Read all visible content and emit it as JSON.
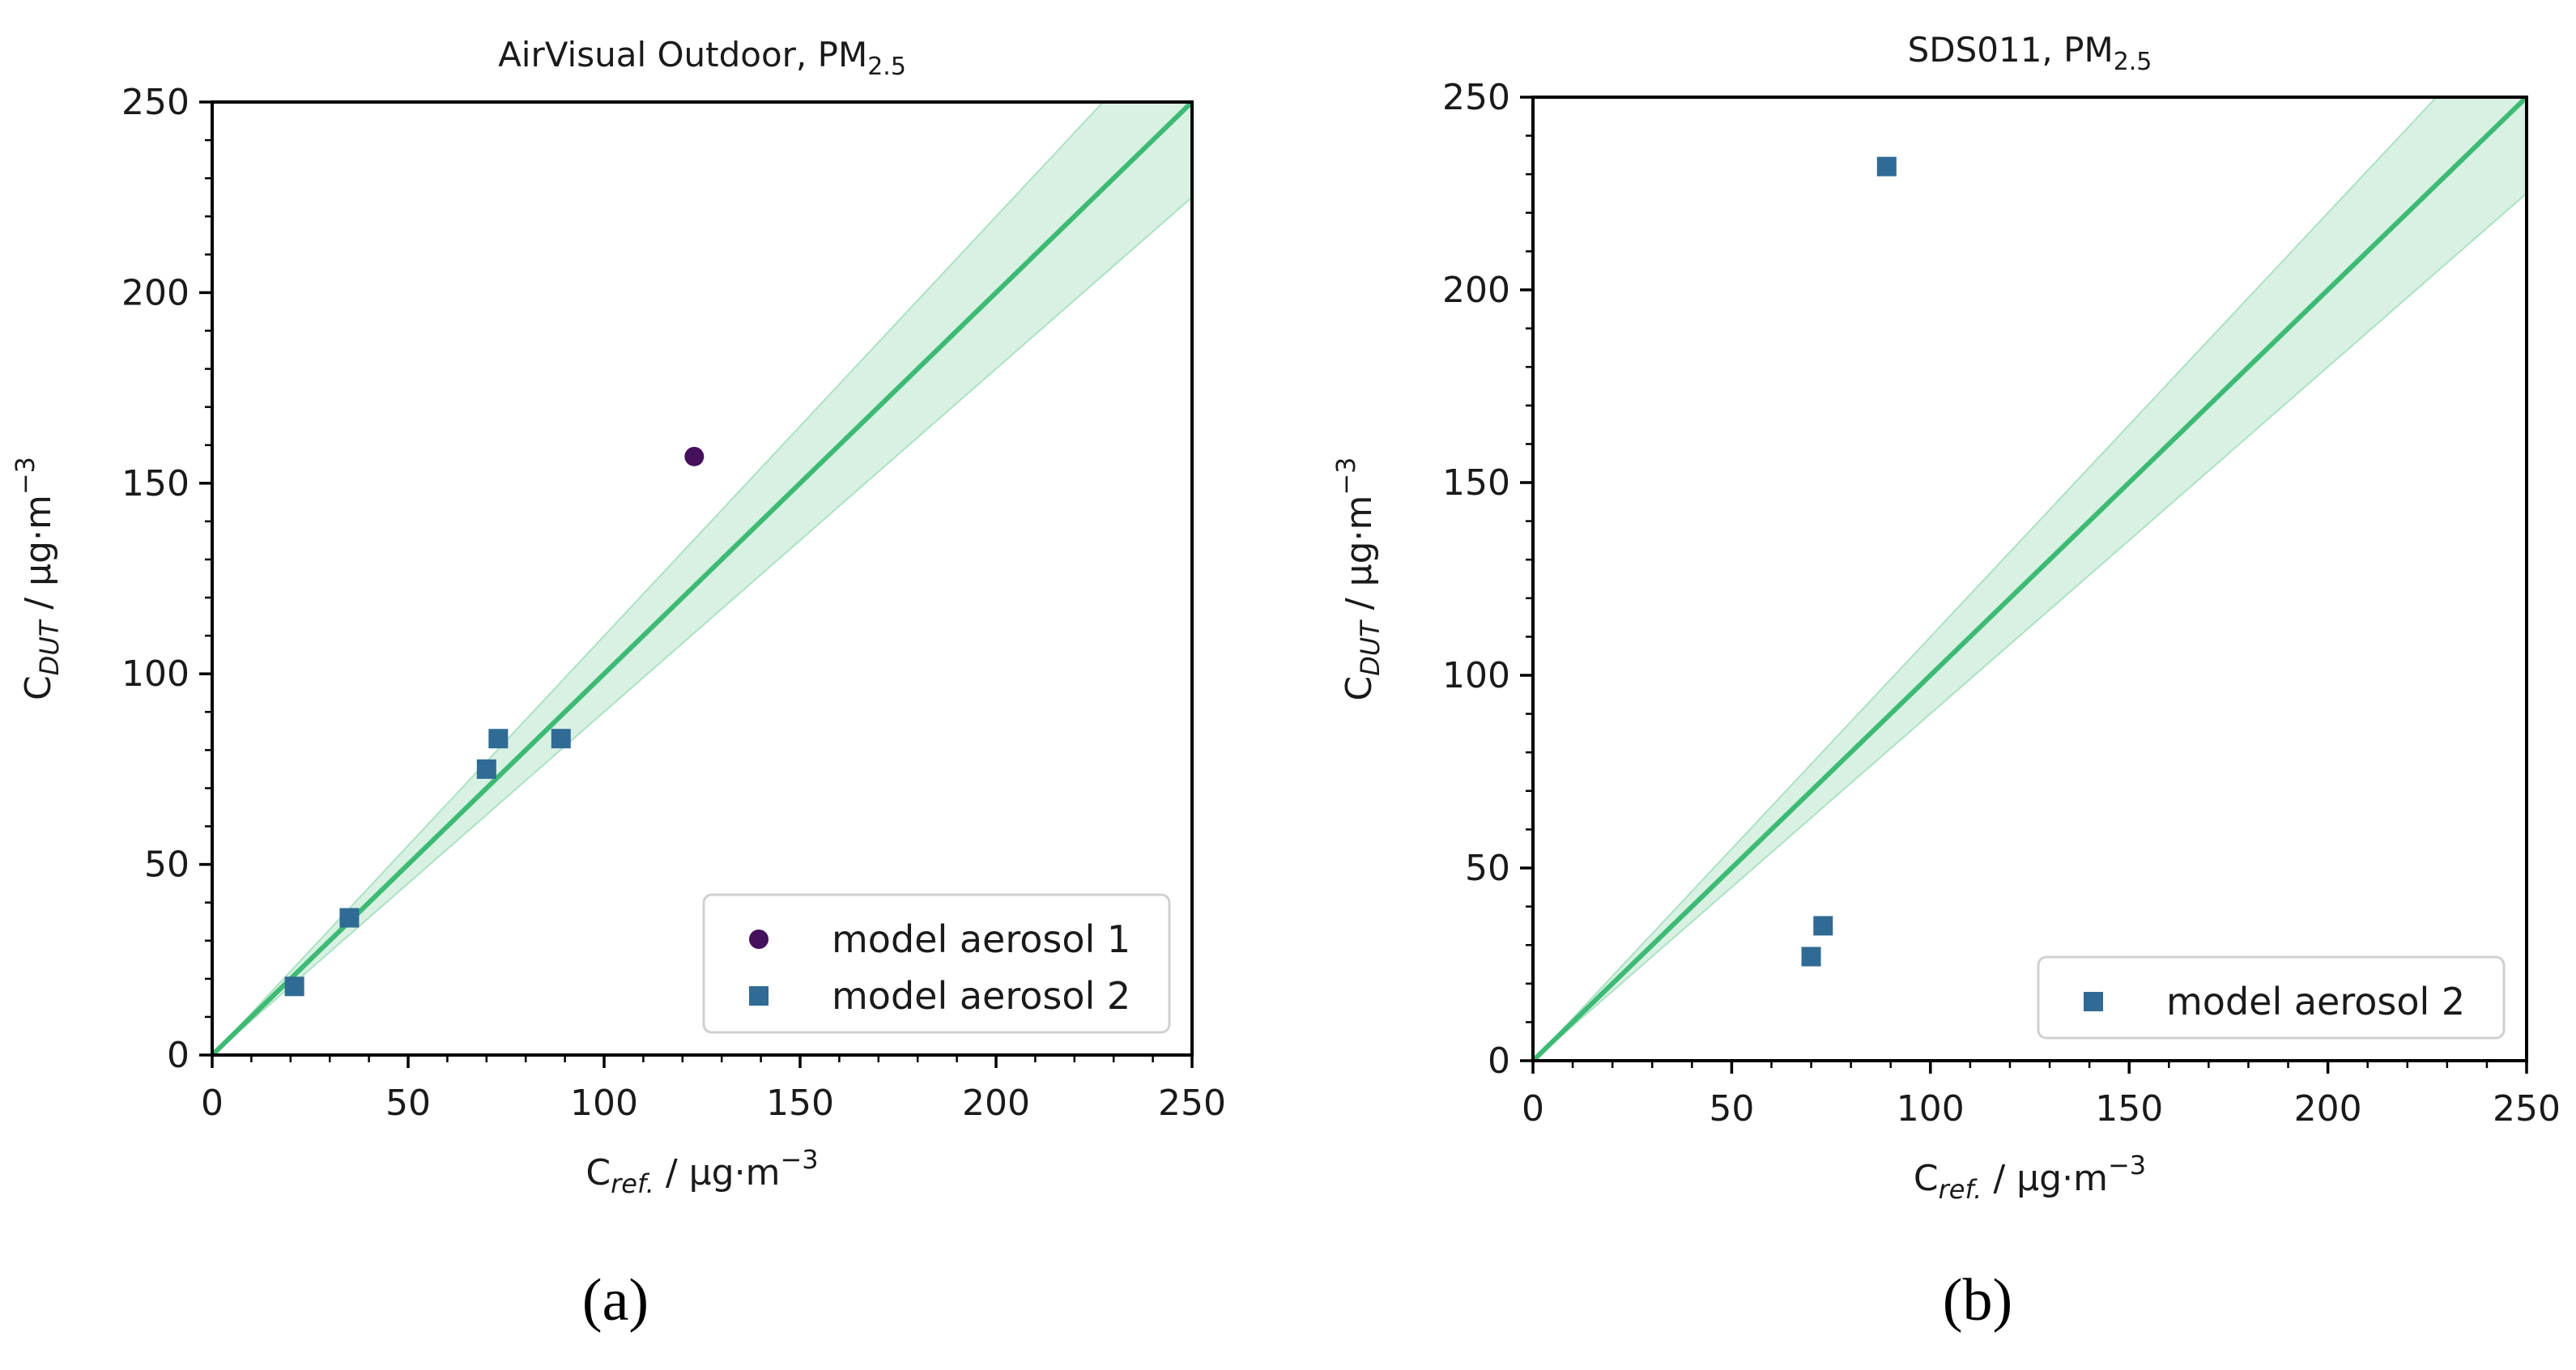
{
  "colors": {
    "line": "#3dba74",
    "band_fill": "#3dba74",
    "aerosol1": "#45105c",
    "aerosol2": "#2f6b95",
    "axis": "#000000",
    "legend_border": "#d0d0d0"
  },
  "chart_data": [
    {
      "type": "scatter",
      "panel_label": "(a)",
      "title": {
        "main": "AirVisual Outdoor, PM",
        "subscript": "2.5"
      },
      "xlabel": {
        "prefix": "C",
        "subscript": "ref.",
        "suffix": "/ μg·m",
        "sup": "−3"
      },
      "ylabel": {
        "prefix": "C",
        "subscript": "DUT",
        "suffix": "/ μg·m",
        "sup": "−3"
      },
      "xlim": [
        0,
        250
      ],
      "ylim": [
        0,
        250
      ],
      "xticks": [
        "0",
        "50",
        "100",
        "150",
        "200",
        "250"
      ],
      "yticks": [
        "0",
        "50",
        "100",
        "150",
        "200",
        "250"
      ],
      "reference_line": {
        "slope": 1.0,
        "band_lower_slope": 0.9,
        "band_upper_slope": 1.1
      },
      "legend_position": "bottom-right",
      "series": [
        {
          "name": "model aerosol 1",
          "marker": "circle",
          "color_key": "aerosol1",
          "points": [
            [
              123,
              157
            ]
          ]
        },
        {
          "name": "model aerosol 2",
          "marker": "square",
          "color_key": "aerosol2",
          "points": [
            [
              21,
              18
            ],
            [
              35,
              36
            ],
            [
              70,
              75
            ],
            [
              73,
              83
            ],
            [
              89,
              83
            ]
          ]
        }
      ]
    },
    {
      "type": "scatter",
      "panel_label": "(b)",
      "title": {
        "main": "SDS011, PM",
        "subscript": "2.5"
      },
      "xlabel": {
        "prefix": "C",
        "subscript": "ref.",
        "suffix": "/ μg·m",
        "sup": "−3"
      },
      "ylabel": {
        "prefix": "C",
        "subscript": "DUT",
        "suffix": "/ μg·m",
        "sup": "−3"
      },
      "xlim": [
        0,
        250
      ],
      "ylim": [
        0,
        250
      ],
      "xticks": [
        "0",
        "50",
        "100",
        "150",
        "200",
        "250"
      ],
      "yticks": [
        "0",
        "50",
        "100",
        "150",
        "200",
        "250"
      ],
      "reference_line": {
        "slope": 1.0,
        "band_lower_slope": 0.9,
        "band_upper_slope": 1.1
      },
      "legend_position": "bottom-right",
      "series": [
        {
          "name": "model aerosol 2",
          "marker": "square",
          "color_key": "aerosol2",
          "points": [
            [
              70,
              27
            ],
            [
              73,
              35
            ],
            [
              89,
              232
            ]
          ]
        }
      ]
    }
  ]
}
